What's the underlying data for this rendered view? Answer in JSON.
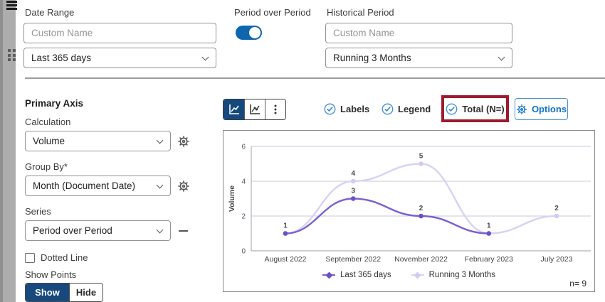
{
  "top": {
    "date_range": {
      "label": "Date Range",
      "name_placeholder": "Custom Name",
      "selected": "Last 365 days"
    },
    "period_over_period": {
      "label": "Period over Period",
      "enabled": true
    },
    "historical_period": {
      "label": "Historical Period",
      "name_placeholder": "Custom Name",
      "selected": "Running 3 Months"
    }
  },
  "sidebar": {
    "title": "Primary Axis",
    "calculation": {
      "label": "Calculation",
      "selected": "Volume"
    },
    "group_by": {
      "label": "Group By*",
      "selected": "Month (Document Date)"
    },
    "series": {
      "label": "Series",
      "selected": "Period over Period"
    },
    "dotted_line": {
      "label": "Dotted Line",
      "checked": false
    },
    "show_points": {
      "label": "Show Points",
      "show_label": "Show",
      "hide_label": "Hide",
      "selected": "Show"
    }
  },
  "toolbar": {
    "labels_toggle": "Labels",
    "legend_toggle": "Legend",
    "total_toggle": "Total (N=)",
    "options_label": "Options"
  },
  "colors": {
    "accent_blue": "#1173c5",
    "navy_selected": "#15497e",
    "toggle_blue": "#0e66ad",
    "check_icon_blue": "#4d93d8",
    "highlight_red": "#9e1b2f",
    "series_dark": "#7b5fd3",
    "series_light": "#d8d2f5"
  },
  "chart_data": {
    "type": "line",
    "title": "",
    "categories": [
      "August 2022",
      "September 2022",
      "November 2022",
      "February 2023",
      "July 2023"
    ],
    "series": [
      {
        "name": "Last 365 days",
        "values": [
          1,
          3,
          2,
          1,
          null
        ],
        "color": "#7b5fd3",
        "marker_color": "#6a50c9"
      },
      {
        "name": "Running 3 Months",
        "values": [
          1,
          4,
          5,
          1,
          2
        ],
        "color": "#d8d2f5",
        "marker_color": "#d2cbf3"
      }
    ],
    "xlabel": "",
    "ylabel": "Volume",
    "ylim": [
      0,
      6
    ],
    "yticks": [
      0,
      2,
      4,
      6
    ],
    "grid": true,
    "legend_position": "bottom",
    "data_labels": true,
    "n_label": "n= 9"
  }
}
